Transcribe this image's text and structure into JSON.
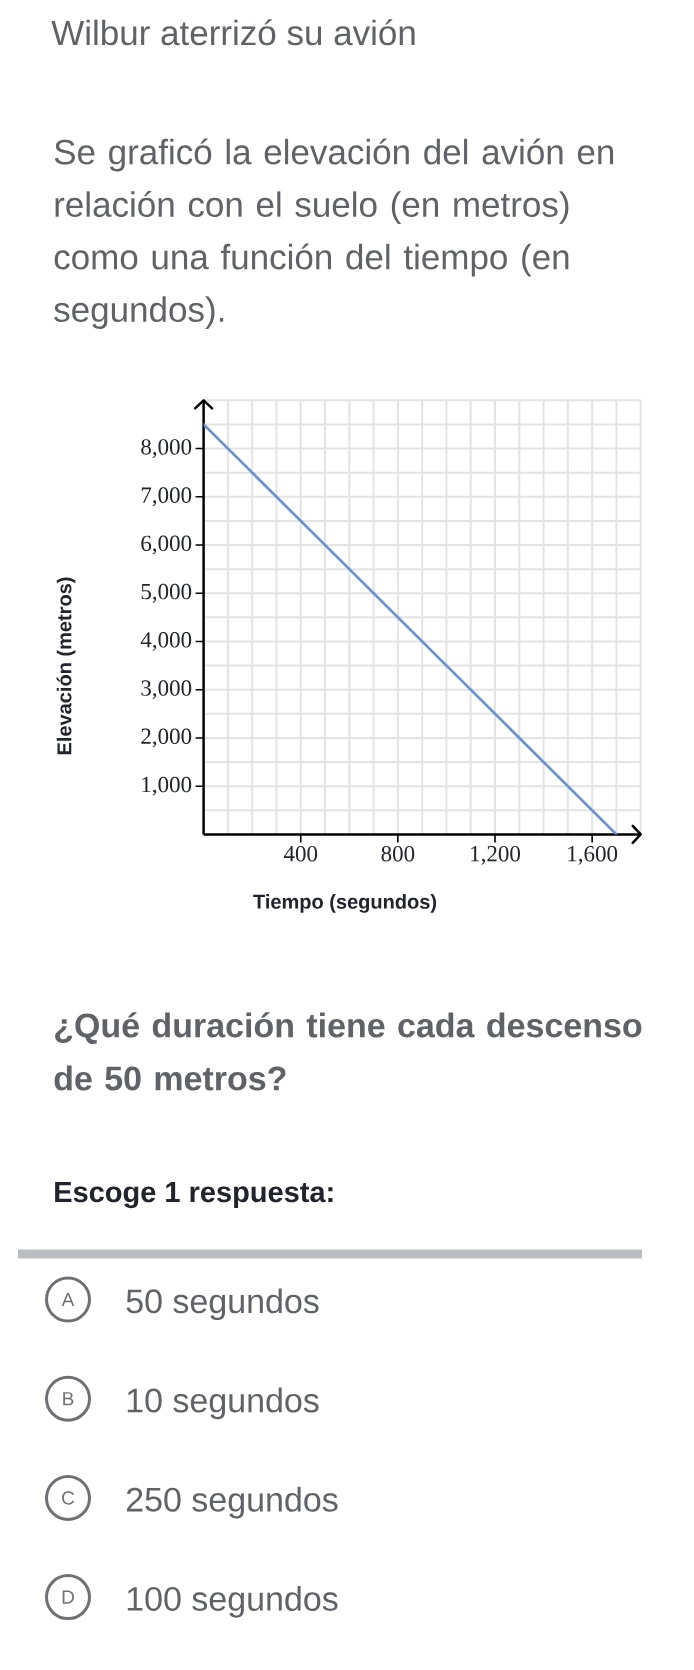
{
  "chart_data": {
    "type": "line",
    "title": "Wilbur aterrizó su avión",
    "subtitle": "Se graficó la elevación del avión en relación con el suelo (en metros) como una función del tiempo (en segundos).",
    "xlabel": "Tiempo (segundos)",
    "ylabel": "Elevación (metros)",
    "x": [
      0,
      1700
    ],
    "values": [
      8500,
      0
    ],
    "color": "#6b93d0",
    "xlim": [
      0,
      1800
    ],
    "ylim": [
      0,
      9000
    ],
    "xticks": [
      {
        "value": 100,
        "label": null
      },
      {
        "value": 200,
        "label": null
      },
      {
        "value": 300,
        "label": null
      },
      400,
      {
        "value": 500,
        "label": null
      },
      {
        "value": 600,
        "label": null
      },
      {
        "value": 700,
        "label": null
      },
      800,
      {
        "value": 900,
        "label": null
      },
      {
        "value": 1000,
        "label": null
      },
      {
        "value": 1100,
        "label": null
      },
      {
        "value": 1200,
        "label": "1,200"
      },
      {
        "value": 1300,
        "label": null
      },
      {
        "value": 1400,
        "label": null
      },
      {
        "value": 1500,
        "label": null
      },
      {
        "value": 1600,
        "label": "1,600"
      },
      {
        "value": 1700,
        "label": null
      },
      {
        "value": 1800,
        "label": null
      }
    ],
    "yticks": [
      {
        "value": 500,
        "label": null
      },
      {
        "value": 1000,
        "label": "1,000"
      },
      {
        "value": 1500,
        "label": null
      },
      {
        "value": 2000,
        "label": "2,000"
      },
      {
        "value": 2500,
        "label": null
      },
      {
        "value": 3000,
        "label": "3,000"
      },
      {
        "value": 3500,
        "label": null
      },
      {
        "value": 4000,
        "label": "4,000"
      },
      {
        "value": 4500,
        "label": null
      },
      {
        "value": 5000,
        "label": "5,000"
      },
      {
        "value": 5500,
        "label": null
      },
      {
        "value": 6000,
        "label": "6,000"
      },
      {
        "value": 6500,
        "label": null
      },
      {
        "value": 7000,
        "label": "7,000"
      },
      {
        "value": 7500,
        "label": null
      },
      {
        "value": 8000,
        "label": "8,000"
      },
      {
        "value": 8500,
        "label": null
      },
      {
        "value": 9000,
        "label": null
      }
    ],
    "grid": true,
    "annotations": [
      "¿Qué duración tiene cada descenso de 50 metros?",
      "Escoge 1 respuesta:",
      "A",
      "50 segundos",
      "B",
      "10 segundos",
      "C",
      "250 segundos",
      "D",
      "100 segundos"
    ]
  }
}
